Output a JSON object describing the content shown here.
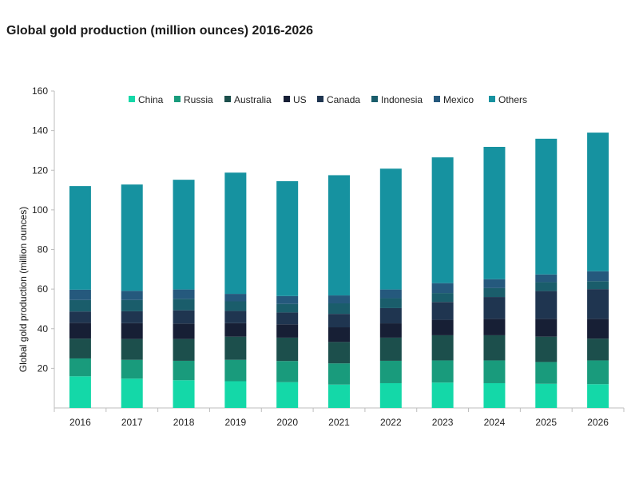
{
  "title": "Global gold production (million ounces) 2016-2026",
  "chart_data": {
    "type": "bar",
    "stacked": true,
    "title": "Global gold production (million ounces) 2016-2026",
    "xlabel": "",
    "ylabel": "Global gold production (million ounces)",
    "ylim": [
      0,
      160
    ],
    "yticks": [
      20,
      40,
      60,
      80,
      100,
      120,
      140,
      160
    ],
    "grid": false,
    "legend_position": "top",
    "categories": [
      "2016",
      "2017",
      "2018",
      "2019",
      "2020",
      "2021",
      "2022",
      "2023",
      "2024",
      "2025",
      "2026"
    ],
    "series": [
      {
        "name": "China",
        "color": "#14d8a8",
        "values": [
          16.0,
          14.8,
          14.0,
          13.5,
          13.0,
          11.8,
          12.5,
          12.8,
          12.5,
          12.2,
          12.0
        ]
      },
      {
        "name": "Russia",
        "color": "#199b7c",
        "values": [
          9.0,
          9.5,
          9.8,
          10.8,
          10.7,
          10.7,
          11.3,
          11.2,
          11.5,
          11.0,
          12.0
        ]
      },
      {
        "name": "Australia",
        "color": "#1c4f4c",
        "values": [
          10.0,
          10.5,
          11.0,
          11.7,
          11.8,
          10.8,
          11.7,
          12.7,
          12.7,
          12.8,
          11.0
        ]
      },
      {
        "name": "US",
        "color": "#171f35",
        "values": [
          8.0,
          8.0,
          7.8,
          6.8,
          6.7,
          7.4,
          7.2,
          7.8,
          8.3,
          9.0,
          10.0
        ]
      },
      {
        "name": "Canada",
        "color": "#1f3550",
        "values": [
          5.7,
          6.0,
          6.7,
          6.2,
          6.0,
          6.8,
          7.7,
          9.0,
          11.0,
          14.0,
          15.0
        ]
      },
      {
        "name": "Indonesia",
        "color": "#1a5d6b",
        "values": [
          5.8,
          5.7,
          5.8,
          4.8,
          4.3,
          5.3,
          5.0,
          4.5,
          4.5,
          4.5,
          4.0
        ]
      },
      {
        "name": "Mexico",
        "color": "#25597d",
        "values": [
          5.2,
          4.6,
          4.7,
          3.8,
          4.0,
          4.0,
          4.4,
          5.0,
          4.5,
          3.9,
          5.0
        ]
      },
      {
        "name": "Others",
        "color": "#1692a0",
        "values": [
          52.3,
          53.7,
          55.4,
          61.2,
          58.0,
          60.7,
          61.0,
          63.5,
          66.8,
          68.5,
          70.0
        ]
      }
    ]
  }
}
